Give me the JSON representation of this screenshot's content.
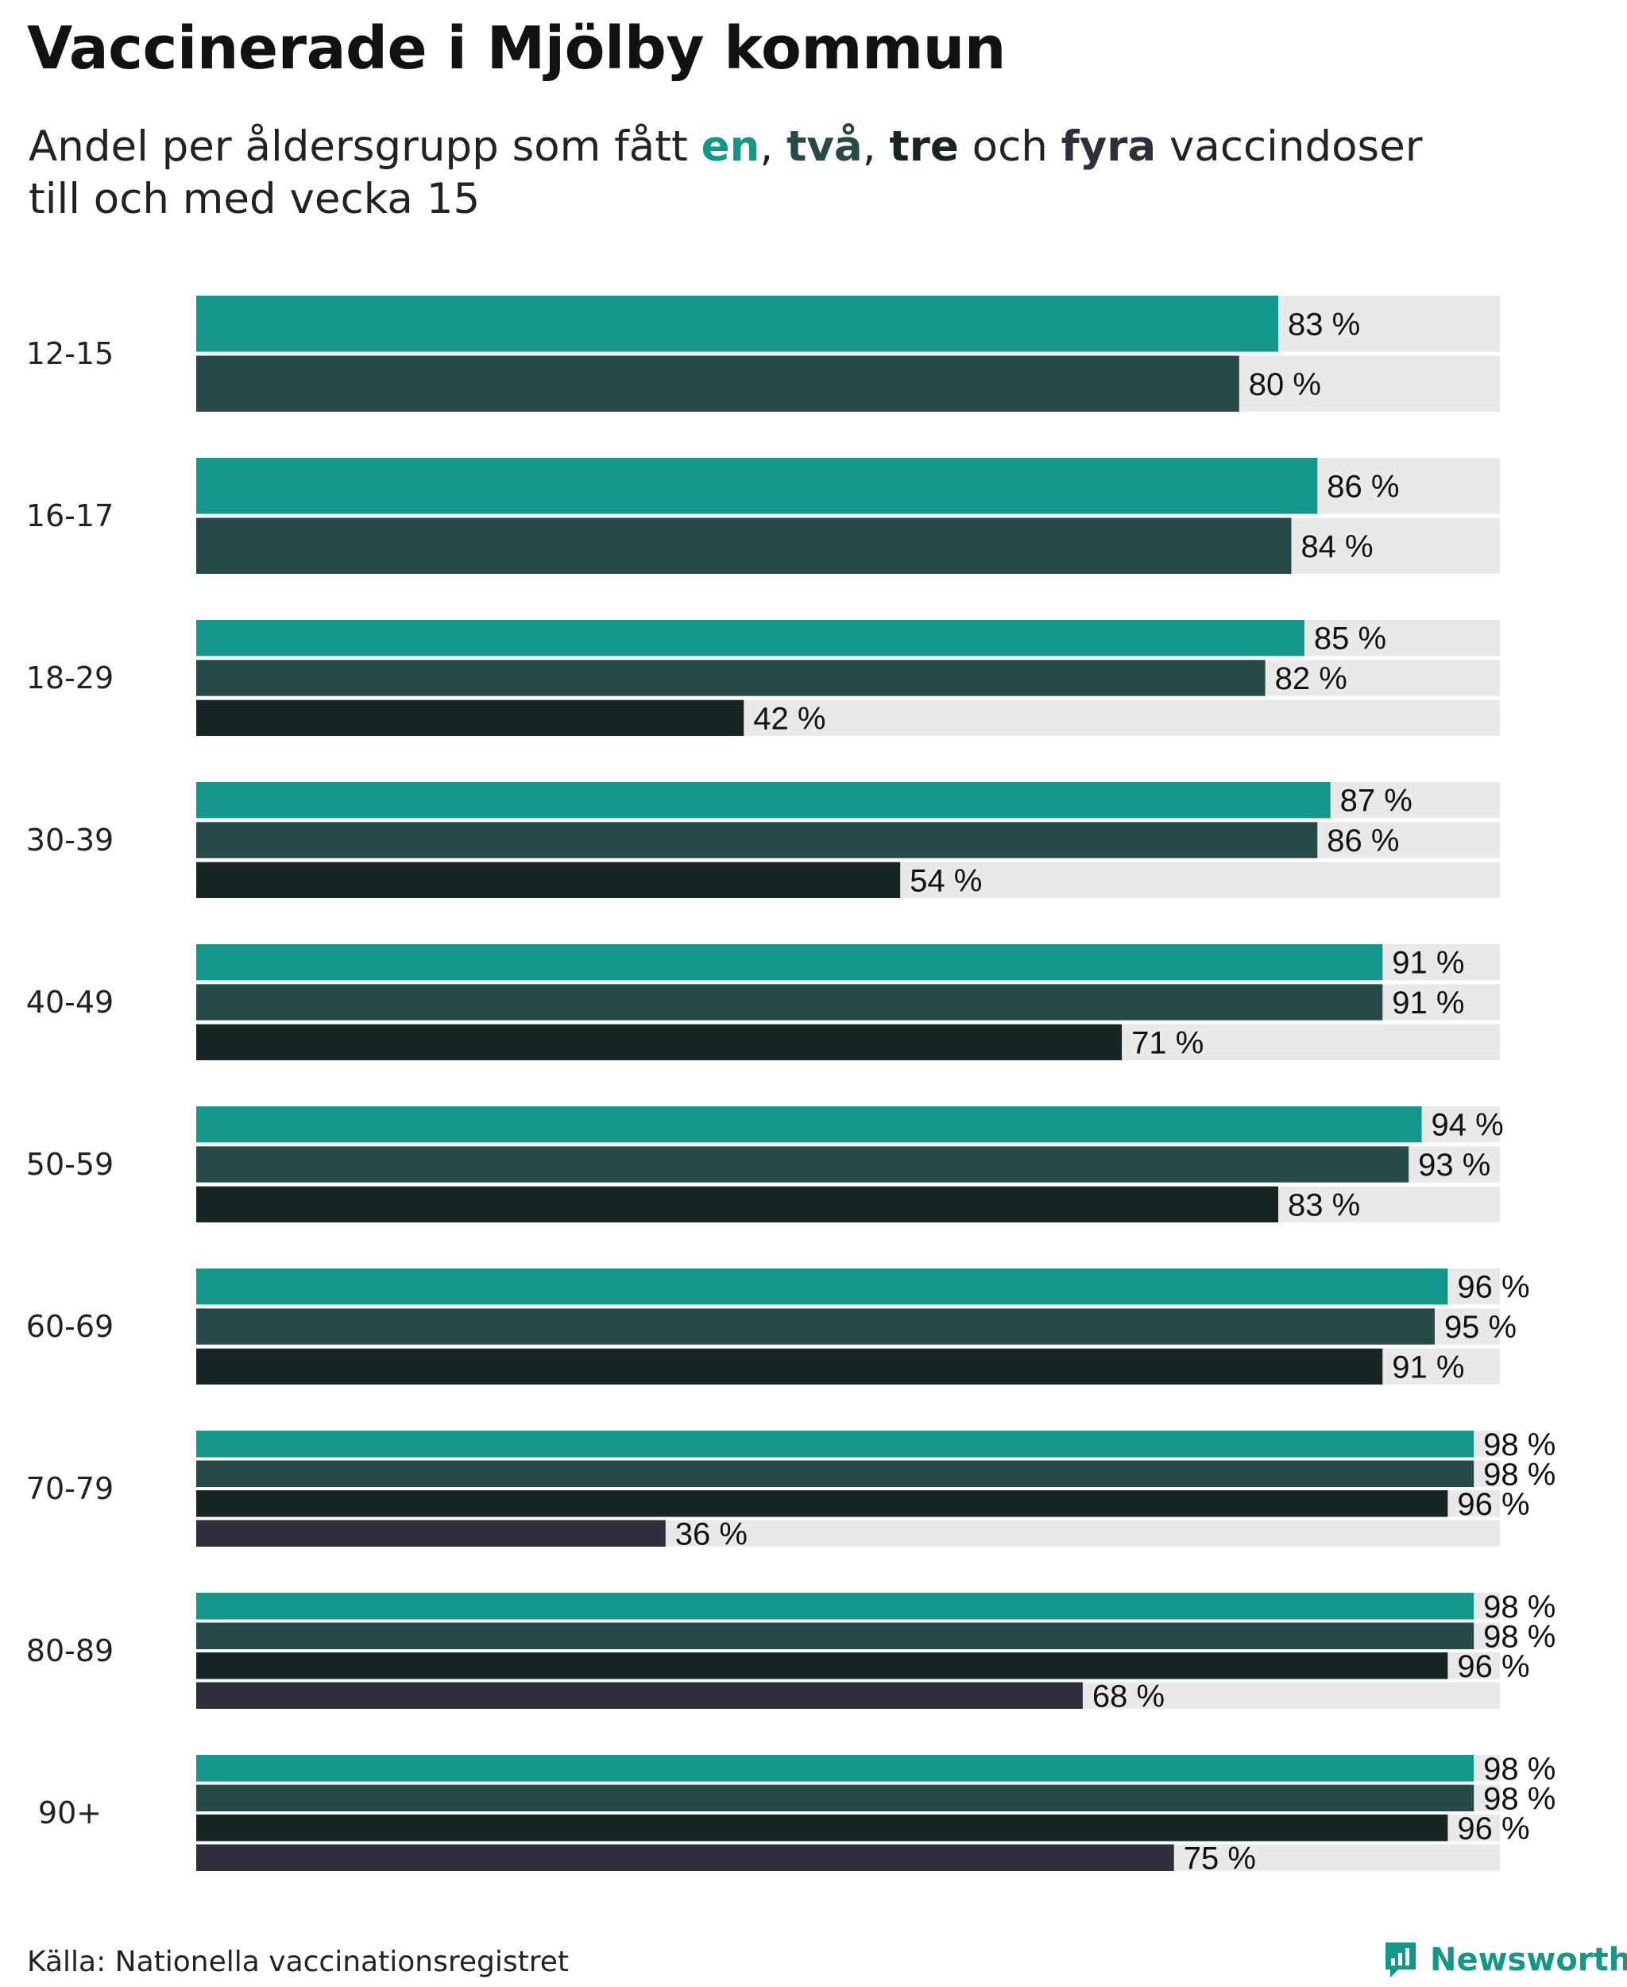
{
  "header": {
    "title": "Vaccinerade i Mjölby kommun",
    "subtitle_pre": "Andel per åldersgrupp som fått ",
    "k1": "en",
    "sep1": ", ",
    "k2": "två",
    "sep2": ", ",
    "k3": "tre",
    "mid": " och ",
    "k4": "fyra",
    "subtitle_post": " vaccindoser",
    "subtitle_line2": "till och med vecka 15"
  },
  "footer": {
    "source": "Källa: Nationella vaccinationsregistret",
    "brand": "Newsworthy",
    "brand_color": "#15968a"
  },
  "colors": {
    "dose1": "#14968a",
    "dose2": "#254a48",
    "dose3": "#172625",
    "dose4": "#2f2f3c",
    "background_bar": "#e9e9e9"
  },
  "chart_data": {
    "type": "bar",
    "orientation": "horizontal",
    "title": "Vaccinerade i Mjölby kommun",
    "subtitle": "Andel per åldersgrupp som fått en, två, tre och fyra vaccindoser till och med vecka 15",
    "xlabel": "",
    "ylabel": "",
    "xlim": [
      0,
      100
    ],
    "unit": " %",
    "categories": [
      "12-15",
      "16-17",
      "18-29",
      "30-39",
      "40-49",
      "50-59",
      "60-69",
      "70-79",
      "80-89",
      "90+"
    ],
    "series": [
      {
        "name": "en",
        "values": [
          83,
          86,
          85,
          87,
          91,
          94,
          96,
          98,
          98,
          98
        ]
      },
      {
        "name": "två",
        "values": [
          80,
          84,
          82,
          86,
          91,
          93,
          95,
          98,
          98,
          98
        ]
      },
      {
        "name": "tre",
        "values": [
          null,
          null,
          42,
          54,
          71,
          83,
          91,
          96,
          96,
          96
        ]
      },
      {
        "name": "fyra",
        "values": [
          null,
          null,
          null,
          null,
          null,
          null,
          null,
          36,
          68,
          75
        ]
      }
    ]
  }
}
